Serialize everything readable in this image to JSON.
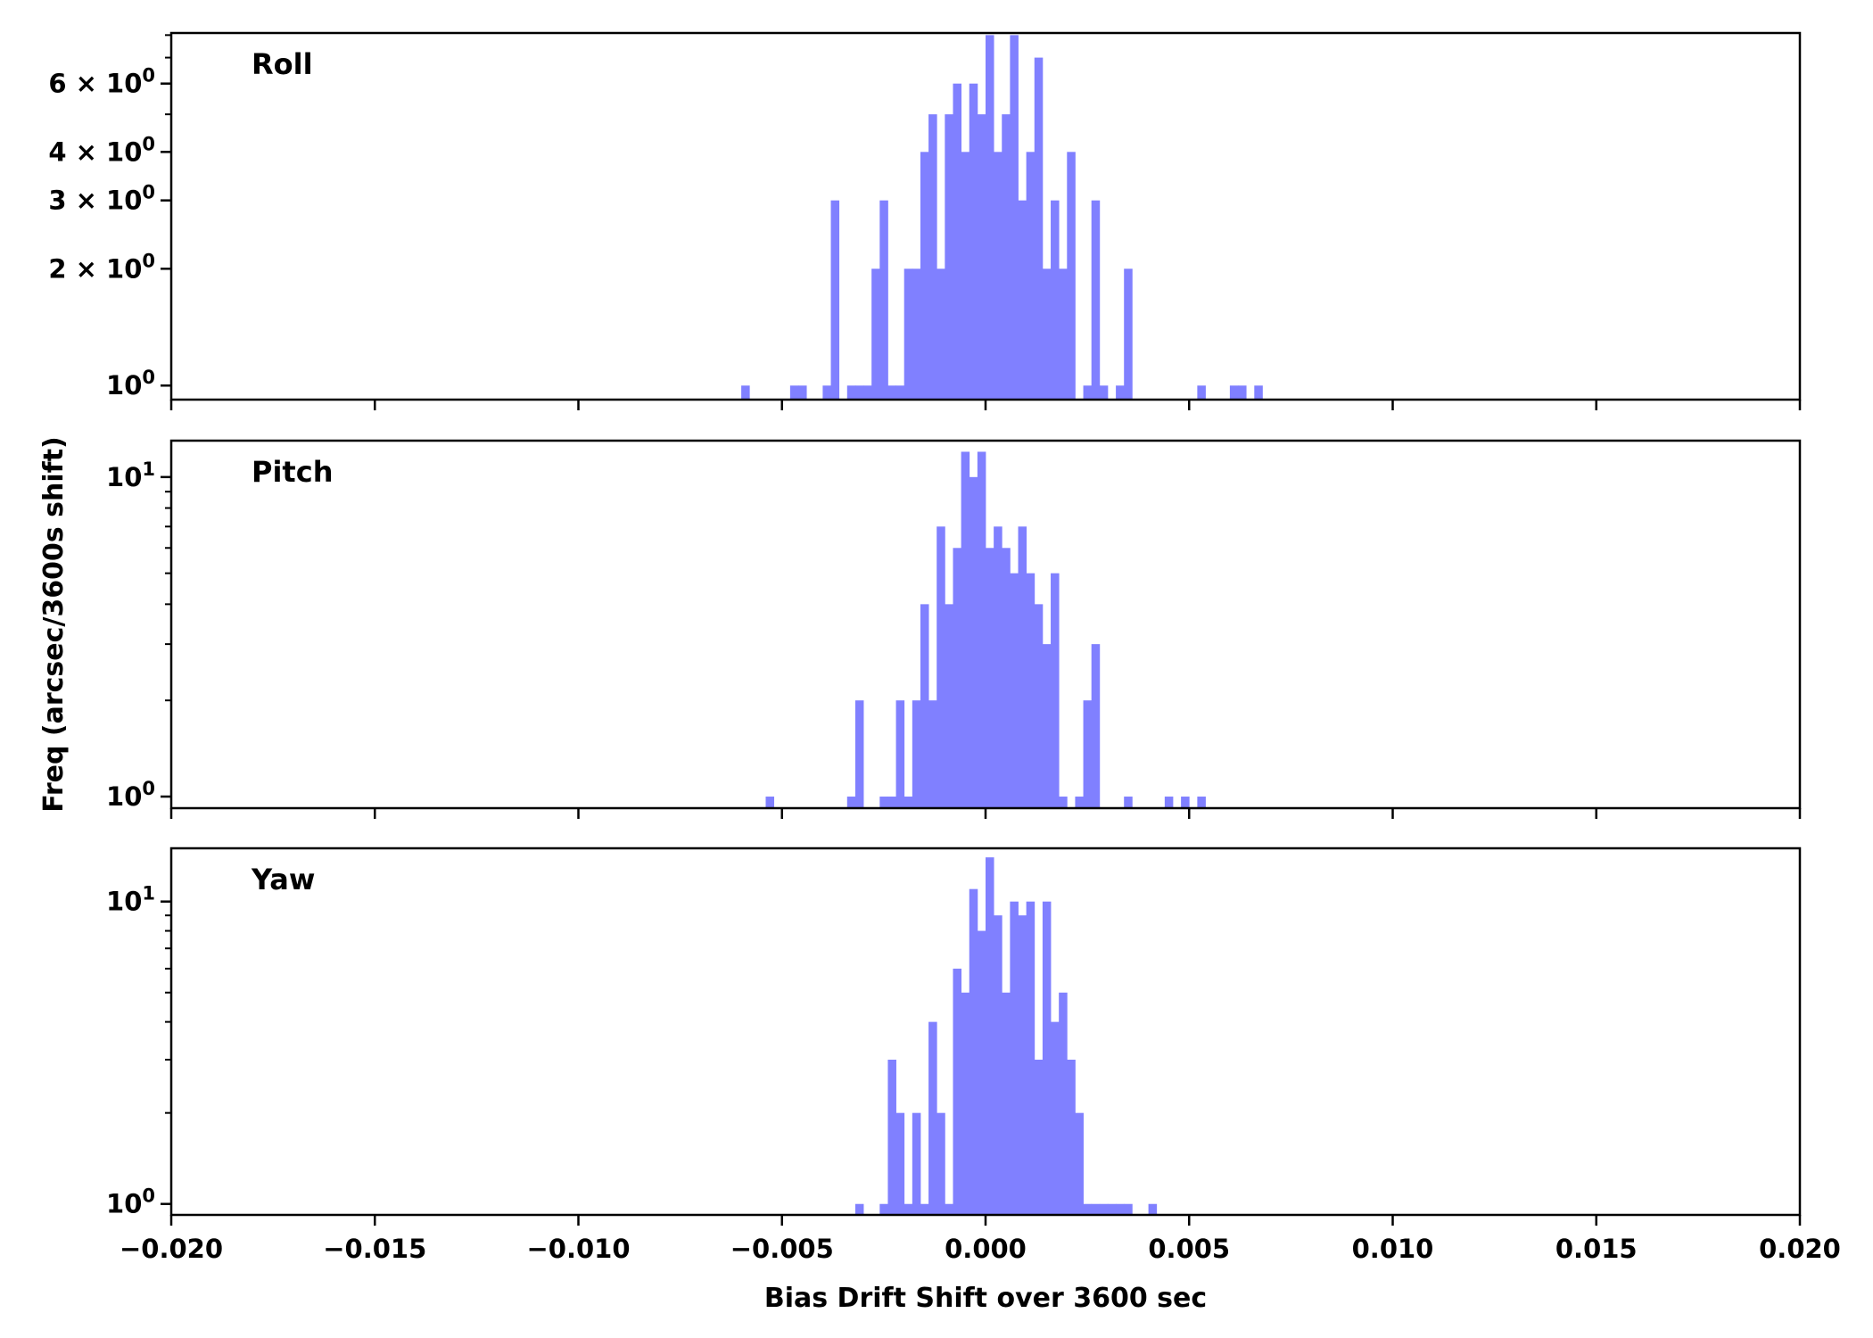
{
  "chart_data": {
    "type": "bar",
    "bar_color": "#8080ff",
    "xlabel": "Bias Drift Shift over 3600 sec",
    "ylabel": "Freq (arcsec/3600s shift)",
    "xlim": [
      -0.02,
      0.02
    ],
    "x_ticks": [
      {
        "value": -0.02,
        "label": "−0.020"
      },
      {
        "value": -0.015,
        "label": "−0.015"
      },
      {
        "value": -0.01,
        "label": "−0.010"
      },
      {
        "value": -0.005,
        "label": "−0.005"
      },
      {
        "value": 0.0,
        "label": "0.000"
      },
      {
        "value": 0.005,
        "label": "0.005"
      },
      {
        "value": 0.01,
        "label": "0.010"
      },
      {
        "value": 0.015,
        "label": "0.015"
      },
      {
        "value": 0.02,
        "label": "0.020"
      }
    ],
    "y_scale": "log",
    "bin_width": 0.0002,
    "panels": [
      {
        "name": "Roll",
        "ylim": [
          0.92,
          8.1
        ],
        "y_ticks": [
          {
            "value": 1,
            "label": "10",
            "sup": "0"
          },
          {
            "value": 2,
            "label": "2 × 10",
            "sup": "0"
          },
          {
            "value": 3,
            "label": "3 × 10",
            "sup": "0"
          },
          {
            "value": 4,
            "label": "4 × 10",
            "sup": "0"
          },
          {
            "value": 6,
            "label": "6 × 10",
            "sup": "0"
          }
        ],
        "minor_y_ticks": [
          5,
          7,
          8
        ],
        "bins": [
          [
            -0.0059,
            1
          ],
          [
            -0.0047,
            1
          ],
          [
            -0.0045,
            1
          ],
          [
            -0.0039,
            1
          ],
          [
            -0.0037,
            3
          ],
          [
            -0.0033,
            1
          ],
          [
            -0.0031,
            1
          ],
          [
            -0.0029,
            1
          ],
          [
            -0.0027,
            2
          ],
          [
            -0.0025,
            3
          ],
          [
            -0.0023,
            1
          ],
          [
            -0.0021,
            1
          ],
          [
            -0.0019,
            2
          ],
          [
            -0.0017,
            2
          ],
          [
            -0.0015,
            4
          ],
          [
            -0.0013,
            5
          ],
          [
            -0.0011,
            2
          ],
          [
            -0.0009,
            5
          ],
          [
            -0.0007,
            6
          ],
          [
            -0.0005,
            4
          ],
          [
            -0.0003,
            6
          ],
          [
            -0.0001,
            5
          ],
          [
            0.0001,
            8
          ],
          [
            0.0003,
            4
          ],
          [
            0.0005,
            5
          ],
          [
            0.0007,
            8
          ],
          [
            0.0009,
            3
          ],
          [
            0.0011,
            4
          ],
          [
            0.0013,
            7
          ],
          [
            0.0015,
            2
          ],
          [
            0.0017,
            3
          ],
          [
            0.0019,
            2
          ],
          [
            0.0021,
            4
          ],
          [
            0.0025,
            1
          ],
          [
            0.0027,
            3
          ],
          [
            0.0029,
            1
          ],
          [
            0.0033,
            1
          ],
          [
            0.0035,
            2
          ],
          [
            0.0053,
            1
          ],
          [
            0.0061,
            1
          ],
          [
            0.0063,
            1
          ],
          [
            0.0067,
            1
          ]
        ]
      },
      {
        "name": "Pitch",
        "ylim": [
          0.92,
          13
        ],
        "y_ticks": [
          {
            "value": 1,
            "label": "10",
            "sup": "0"
          },
          {
            "value": 10,
            "label": "10",
            "sup": "1"
          }
        ],
        "minor_y_ticks": [
          2,
          3,
          4,
          5,
          6,
          7,
          8,
          9
        ],
        "bins": [
          [
            -0.0053,
            1
          ],
          [
            -0.0033,
            1
          ],
          [
            -0.0031,
            2
          ],
          [
            -0.0025,
            1
          ],
          [
            -0.0023,
            1
          ],
          [
            -0.0021,
            2
          ],
          [
            -0.0019,
            1
          ],
          [
            -0.0017,
            2
          ],
          [
            -0.0015,
            4
          ],
          [
            -0.0013,
            2
          ],
          [
            -0.0011,
            7
          ],
          [
            -0.0009,
            4
          ],
          [
            -0.0007,
            6
          ],
          [
            -0.0005,
            12
          ],
          [
            -0.0003,
            10
          ],
          [
            -0.0001,
            12
          ],
          [
            0.0001,
            6
          ],
          [
            0.0003,
            7
          ],
          [
            0.0005,
            6
          ],
          [
            0.0007,
            5
          ],
          [
            0.0009,
            7
          ],
          [
            0.0011,
            5
          ],
          [
            0.0013,
            4
          ],
          [
            0.0015,
            3
          ],
          [
            0.0017,
            5
          ],
          [
            0.0019,
            1
          ],
          [
            0.0023,
            1
          ],
          [
            0.0025,
            2
          ],
          [
            0.0027,
            3
          ],
          [
            0.0035,
            1
          ],
          [
            0.0045,
            1
          ],
          [
            0.0049,
            1
          ],
          [
            0.0053,
            1
          ]
        ]
      },
      {
        "name": "Yaw",
        "ylim": [
          0.92,
          15
        ],
        "y_ticks": [
          {
            "value": 1,
            "label": "10",
            "sup": "0"
          },
          {
            "value": 10,
            "label": "10",
            "sup": "1"
          }
        ],
        "minor_y_ticks": [
          2,
          3,
          4,
          5,
          6,
          7,
          8,
          9
        ],
        "bins": [
          [
            -0.0031,
            1
          ],
          [
            -0.0025,
            1
          ],
          [
            -0.0023,
            3
          ],
          [
            -0.0021,
            2
          ],
          [
            -0.0019,
            1
          ],
          [
            -0.0017,
            2
          ],
          [
            -0.0015,
            1
          ],
          [
            -0.0013,
            4
          ],
          [
            -0.0011,
            2
          ],
          [
            -0.0009,
            1
          ],
          [
            -0.0007,
            6
          ],
          [
            -0.0005,
            5
          ],
          [
            -0.0003,
            11
          ],
          [
            -0.0001,
            8
          ],
          [
            0.0001,
            14
          ],
          [
            0.0003,
            9
          ],
          [
            0.0005,
            5
          ],
          [
            0.0007,
            10
          ],
          [
            0.0009,
            9
          ],
          [
            0.0011,
            10
          ],
          [
            0.0013,
            3
          ],
          [
            0.0015,
            10
          ],
          [
            0.0017,
            4
          ],
          [
            0.0019,
            5
          ],
          [
            0.0021,
            3
          ],
          [
            0.0023,
            2
          ],
          [
            0.0025,
            1
          ],
          [
            0.0027,
            1
          ],
          [
            0.0029,
            1
          ],
          [
            0.0031,
            1
          ],
          [
            0.0033,
            1
          ],
          [
            0.0035,
            1
          ],
          [
            0.0041,
            1
          ]
        ]
      }
    ]
  }
}
